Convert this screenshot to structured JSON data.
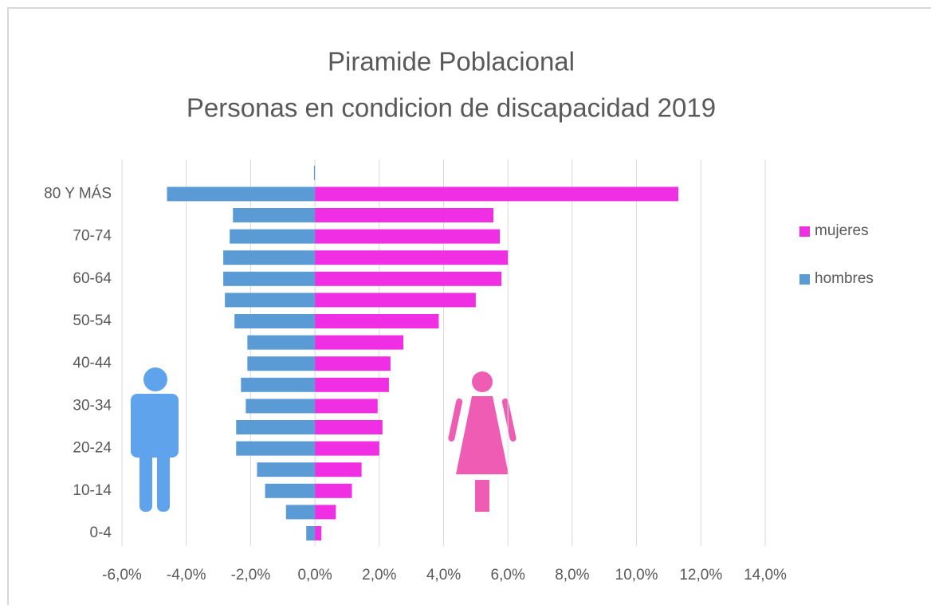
{
  "chart_data": {
    "type": "bar",
    "orientation": "horizontal",
    "stacked": "diverging",
    "title": "Piramide Poblacional",
    "subtitle": "Personas en condicion de discapacidad 2019",
    "categories": [
      "0-4",
      null,
      "10-14",
      null,
      "20-24",
      null,
      "30-34",
      null,
      "40-44",
      null,
      "50-54",
      null,
      "60-64",
      null,
      "70-74",
      null,
      "80 Y MÁS",
      null
    ],
    "series": [
      {
        "name": "mujeres",
        "color": "#f02ee3",
        "values": [
          0.2,
          0.65,
          1.15,
          1.45,
          2.0,
          2.1,
          1.95,
          2.3,
          2.35,
          2.75,
          3.85,
          5.0,
          5.8,
          6.0,
          5.75,
          5.55,
          11.3,
          0
        ]
      },
      {
        "name": "hombres",
        "color": "#5b9bd5",
        "values": [
          -0.27,
          -0.9,
          -1.55,
          -1.8,
          -2.45,
          -2.45,
          -2.15,
          -2.3,
          -2.1,
          -2.1,
          -2.5,
          -2.8,
          -2.85,
          -2.85,
          -2.65,
          -2.55,
          -4.6,
          -0.03
        ]
      }
    ],
    "xlim": [
      -6,
      14
    ],
    "xticks": [
      {
        "value": -6,
        "label": "-6,0%"
      },
      {
        "value": -4,
        "label": "-4,0%"
      },
      {
        "value": -2,
        "label": "-2,0%"
      },
      {
        "value": 0,
        "label": "0,0%"
      },
      {
        "value": 2,
        "label": "2,0%"
      },
      {
        "value": 4,
        "label": "4,0%"
      },
      {
        "value": 6,
        "label": "6,0%"
      },
      {
        "value": 8,
        "label": "8,0%"
      },
      {
        "value": 10,
        "label": "10,0%"
      },
      {
        "value": 12,
        "label": "12,0%"
      },
      {
        "value": 14,
        "label": "14,0%"
      }
    ],
    "grid": true,
    "legend": "right"
  }
}
